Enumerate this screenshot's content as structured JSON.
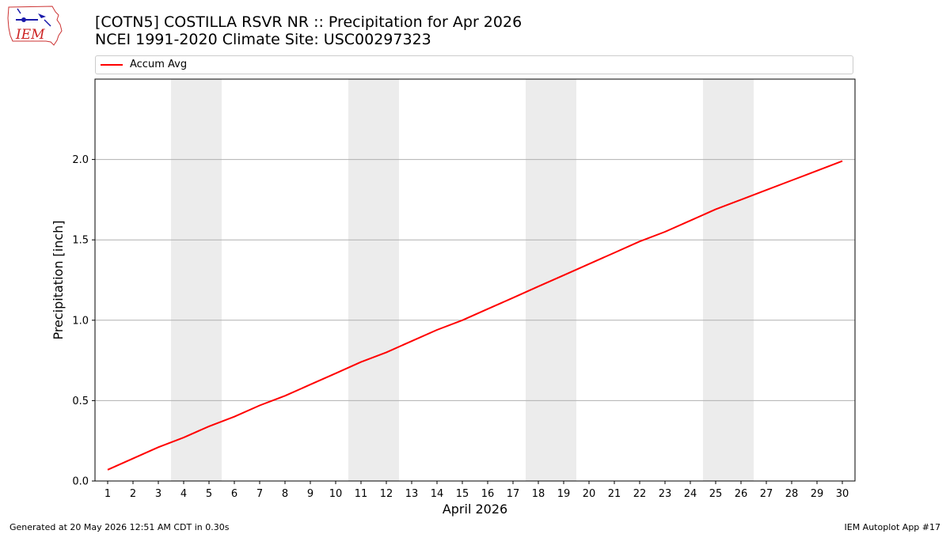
{
  "header": {
    "title_line1": "[COTN5] COSTILLA RSVR NR :: Precipitation for Apr 2026",
    "title_line2": "NCEI 1991-2020 Climate Site: USC00297323"
  },
  "logo": {
    "text": "IEM",
    "icon": "iem-logo-icon"
  },
  "footer": {
    "generated": "Generated at 20 May 2026 12:51 AM CDT in 0.30s",
    "app": "IEM Autoplot App #17"
  },
  "chart_data": {
    "type": "line",
    "xlabel": "April 2026",
    "ylabel": "Precipitation [inch]",
    "x": [
      1,
      2,
      3,
      4,
      5,
      6,
      7,
      8,
      9,
      10,
      11,
      12,
      13,
      14,
      15,
      16,
      17,
      18,
      19,
      20,
      21,
      22,
      23,
      24,
      25,
      26,
      27,
      28,
      29,
      30
    ],
    "xlim": [
      0.5,
      30.5
    ],
    "ylim": [
      0,
      2.5
    ],
    "yticks": [
      0.0,
      0.5,
      1.0,
      1.5,
      2.0
    ],
    "ytick_labels": [
      "0.0",
      "0.5",
      "1.0",
      "1.5",
      "2.0"
    ],
    "grid": "y",
    "legend": "top",
    "weekend_bands": [
      [
        4,
        5
      ],
      [
        11,
        12
      ],
      [
        18,
        19
      ],
      [
        25,
        26
      ]
    ],
    "band_color": "#ececec",
    "series": [
      {
        "name": "Accum Avg",
        "color": "#ff0000",
        "values": [
          0.07,
          0.14,
          0.21,
          0.27,
          0.34,
          0.4,
          0.47,
          0.53,
          0.6,
          0.67,
          0.74,
          0.8,
          0.87,
          0.94,
          1.0,
          1.07,
          1.14,
          1.21,
          1.28,
          1.35,
          1.42,
          1.49,
          1.55,
          1.62,
          1.69,
          1.75,
          1.81,
          1.87,
          1.93,
          1.99
        ]
      }
    ]
  }
}
